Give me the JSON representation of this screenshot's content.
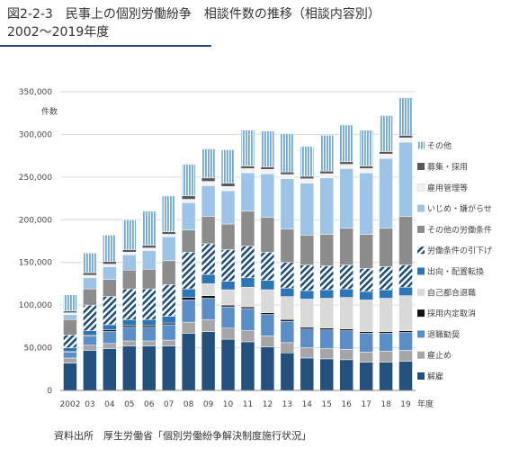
{
  "title_line1": "図2-2-3　民事上の個別労働紛争　相談件数の推移（相談内容別）",
  "title_line2": "2002～2019年度",
  "source": "資料出所　厚生労働省「個別労働紛争解決制度施行状況」",
  "chart_data": {
    "type": "bar",
    "stacked": true,
    "yunit": "件数",
    "xunit": "年度",
    "ylim": [
      0,
      350000
    ],
    "yticks": [
      0,
      50000,
      100000,
      150000,
      200000,
      250000,
      300000,
      350000
    ],
    "ytick_labels": [
      "0",
      "50,000",
      "100,000",
      "150,000",
      "200,000",
      "250,000",
      "300,000",
      "350,000"
    ],
    "grid": true,
    "legend_position": "right",
    "categories": [
      "2002",
      "03",
      "04",
      "05",
      "06",
      "07",
      "08",
      "09",
      "10",
      "11",
      "12",
      "13",
      "14",
      "15",
      "16",
      "17",
      "18",
      "19"
    ],
    "series": [
      {
        "name": "解雇",
        "color": "#24507e",
        "pattern": "solid",
        "values": [
          32000,
          47000,
          49000,
          52000,
          52000,
          52000,
          67000,
          69000,
          60000,
          57000,
          51000,
          44000,
          38000,
          37000,
          36000,
          33000,
          33000,
          34000
        ]
      },
      {
        "name": "雇止め",
        "color": "#a6a6a6",
        "pattern": "solid",
        "values": [
          6000,
          6000,
          6000,
          6000,
          6000,
          7000,
          13000,
          14000,
          13000,
          13000,
          13000,
          12000,
          12000,
          12000,
          12000,
          12000,
          13000,
          13000
        ]
      },
      {
        "name": "退職勧奨",
        "color": "#5b8ec7",
        "pattern": "solid",
        "values": [
          7000,
          11000,
          14000,
          16000,
          16000,
          18000,
          26000,
          25000,
          25000,
          26000,
          25000,
          25000,
          22000,
          22000,
          22000,
          22000,
          21000,
          21000
        ]
      },
      {
        "name": "採用内定取消",
        "color": "#111111",
        "pattern": "solid",
        "values": [
          1000,
          1000,
          2000,
          2000,
          2000,
          2000,
          3000,
          3000,
          2000,
          2000,
          2000,
          2000,
          2000,
          2000,
          2000,
          2000,
          2000,
          2000
        ]
      },
      {
        "name": "自己都合退職",
        "color": "#d9d9d9",
        "pattern": "solid",
        "values": [
          0,
          0,
          0,
          0,
          0,
          0,
          0,
          14000,
          18000,
          23000,
          27000,
          27000,
          33000,
          35000,
          37000,
          37000,
          39000,
          41000
        ]
      },
      {
        "name": "出向・配置転換",
        "color": "#2e75b6",
        "pattern": "solid",
        "values": [
          4000,
          5000,
          6000,
          7000,
          7000,
          8000,
          10000,
          11000,
          10000,
          11000,
          11000,
          10000,
          10000,
          10000,
          10000,
          10000,
          10000,
          10000
        ]
      },
      {
        "name": "労働条件の引下げ",
        "color": "#1f4e79",
        "pattern": "hatch",
        "values": [
          15000,
          30000,
          33000,
          36000,
          36000,
          37000,
          43000,
          36000,
          37000,
          37000,
          33000,
          30000,
          30000,
          28000,
          28000,
          27000,
          27000,
          26000
        ]
      },
      {
        "name": "その他の労働条件",
        "color": "#8c8c8c",
        "pattern": "solid",
        "values": [
          18000,
          19000,
          20000,
          22000,
          23000,
          28000,
          26000,
          32000,
          30000,
          41000,
          41000,
          39000,
          35000,
          37000,
          43000,
          40000,
          45000,
          57000
        ]
      },
      {
        "name": "いじめ・嫌がらせ",
        "color": "#9dc3e6",
        "pattern": "solid",
        "values": [
          6000,
          13000,
          15000,
          18000,
          22000,
          28000,
          32000,
          36000,
          39000,
          45000,
          51000,
          59000,
          61000,
          66000,
          70000,
          72000,
          82000,
          87000
        ]
      },
      {
        "name": "雇用管理等",
        "color": "#f2f2f2",
        "pattern": "solid",
        "values": [
          2000,
          3000,
          3000,
          3000,
          3000,
          3000,
          4000,
          5000,
          5000,
          5000,
          5000,
          5000,
          5000,
          5000,
          5000,
          5000,
          5000,
          5000
        ]
      },
      {
        "name": "募集・採用",
        "color": "#595959",
        "pattern": "solid",
        "values": [
          2000,
          3000,
          3000,
          3000,
          3000,
          3000,
          4000,
          4000,
          4000,
          3000,
          3000,
          3000,
          3000,
          3000,
          3000,
          3000,
          3000,
          3000
        ]
      },
      {
        "name": "その他",
        "color": "#6fa8dc",
        "pattern": "vstripe",
        "values": [
          19000,
          23000,
          31000,
          35000,
          40000,
          42000,
          37000,
          34000,
          39000,
          42000,
          42000,
          45000,
          35000,
          42000,
          43000,
          42000,
          42000,
          44000
        ]
      }
    ]
  }
}
